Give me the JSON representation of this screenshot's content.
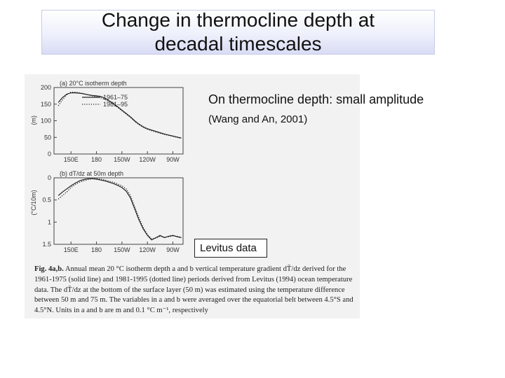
{
  "slide": {
    "title": "Change in thermocline depth at\ndecadal timescales",
    "note_main": "On thermocline depth: small amplitude",
    "note_ref": "(Wang and An, 2001)",
    "label_box": "Levitus data"
  },
  "figure": {
    "caption_lead": "Fig. 4a,b.",
    "caption_text": " Annual mean 20 °C isotherm depth a and b vertical temperature gradient dT̄/dz derived for the 1961-1975 (solid line) and 1981-1995 (dotted line) periods derived from Levitus (1994) ocean temperature data. The dT̄/dz at the bottom of the surface layer (50 m) was estimated using the temperature difference between 50 m and 75 m. The variables in a and b were averaged over the equatorial belt between 4.5°S and 4.5°N. Units in a and b are m and 0.1 °C m⁻¹, respectively"
  },
  "chart_data": [
    {
      "type": "line",
      "panel_label": "(a)  20°C isotherm depth",
      "ylabel": "(m)",
      "x_ticks": [
        "150E",
        "180",
        "150W",
        "120W",
        "90W"
      ],
      "y_ticks": [
        0,
        50,
        100,
        150,
        200
      ],
      "ylim": [
        200,
        0
      ],
      "legend": [
        "1961–75",
        "1981–95"
      ],
      "legend_position": "top-right",
      "x": [
        135,
        140,
        145,
        150,
        155,
        160,
        165,
        170,
        175,
        180,
        185,
        190,
        195,
        200,
        205,
        210,
        215,
        220,
        225,
        230,
        235,
        240,
        245,
        250,
        255,
        260,
        265,
        270,
        275,
        280
      ],
      "series": [
        {
          "name": "1961–75",
          "style": "solid",
          "values": [
            155,
            170,
            180,
            184,
            184,
            183,
            181,
            178,
            176,
            175,
            173,
            168,
            160,
            152,
            142,
            132,
            122,
            112,
            100,
            90,
            82,
            76,
            72,
            68,
            64,
            60,
            57,
            54,
            51,
            48
          ]
        },
        {
          "name": "1981–95",
          "style": "dotted",
          "values": [
            145,
            163,
            178,
            186,
            186,
            184,
            181,
            178,
            175,
            172,
            169,
            164,
            157,
            150,
            140,
            130,
            120,
            110,
            98,
            88,
            80,
            74,
            70,
            66,
            62,
            59,
            56,
            53,
            50,
            47
          ]
        }
      ]
    },
    {
      "type": "line",
      "panel_label": "(b)  dT/dz at 50m  depth",
      "ylabel": "(°C/10m)",
      "x_ticks": [
        "150E",
        "180",
        "150W",
        "120W",
        "90W"
      ],
      "y_ticks": [
        0,
        0.5,
        1,
        1.5
      ],
      "ylim": [
        0,
        1.5
      ],
      "x": [
        135,
        140,
        145,
        150,
        155,
        160,
        165,
        170,
        175,
        180,
        185,
        190,
        195,
        200,
        205,
        210,
        215,
        220,
        225,
        230,
        235,
        240,
        245,
        250,
        255,
        260,
        265,
        270,
        275,
        280
      ],
      "series": [
        {
          "name": "1961–75",
          "style": "solid",
          "values": [
            0.4,
            0.32,
            0.25,
            0.18,
            0.12,
            0.07,
            0.04,
            0.02,
            0.02,
            0.03,
            0.05,
            0.07,
            0.1,
            0.13,
            0.17,
            0.22,
            0.3,
            0.45,
            0.7,
            0.95,
            1.15,
            1.3,
            1.4,
            1.35,
            1.3,
            1.35,
            1.32,
            1.3,
            1.33,
            1.35
          ]
        },
        {
          "name": "1981–95",
          "style": "dotted",
          "values": [
            0.48,
            0.4,
            0.32,
            0.22,
            0.15,
            0.1,
            0.07,
            0.04,
            0.02,
            0.02,
            0.03,
            0.05,
            0.08,
            0.1,
            0.14,
            0.18,
            0.25,
            0.4,
            0.65,
            0.9,
            1.12,
            1.28,
            1.38,
            1.36,
            1.32,
            1.34,
            1.33,
            1.31,
            1.32,
            1.34
          ]
        }
      ]
    }
  ]
}
